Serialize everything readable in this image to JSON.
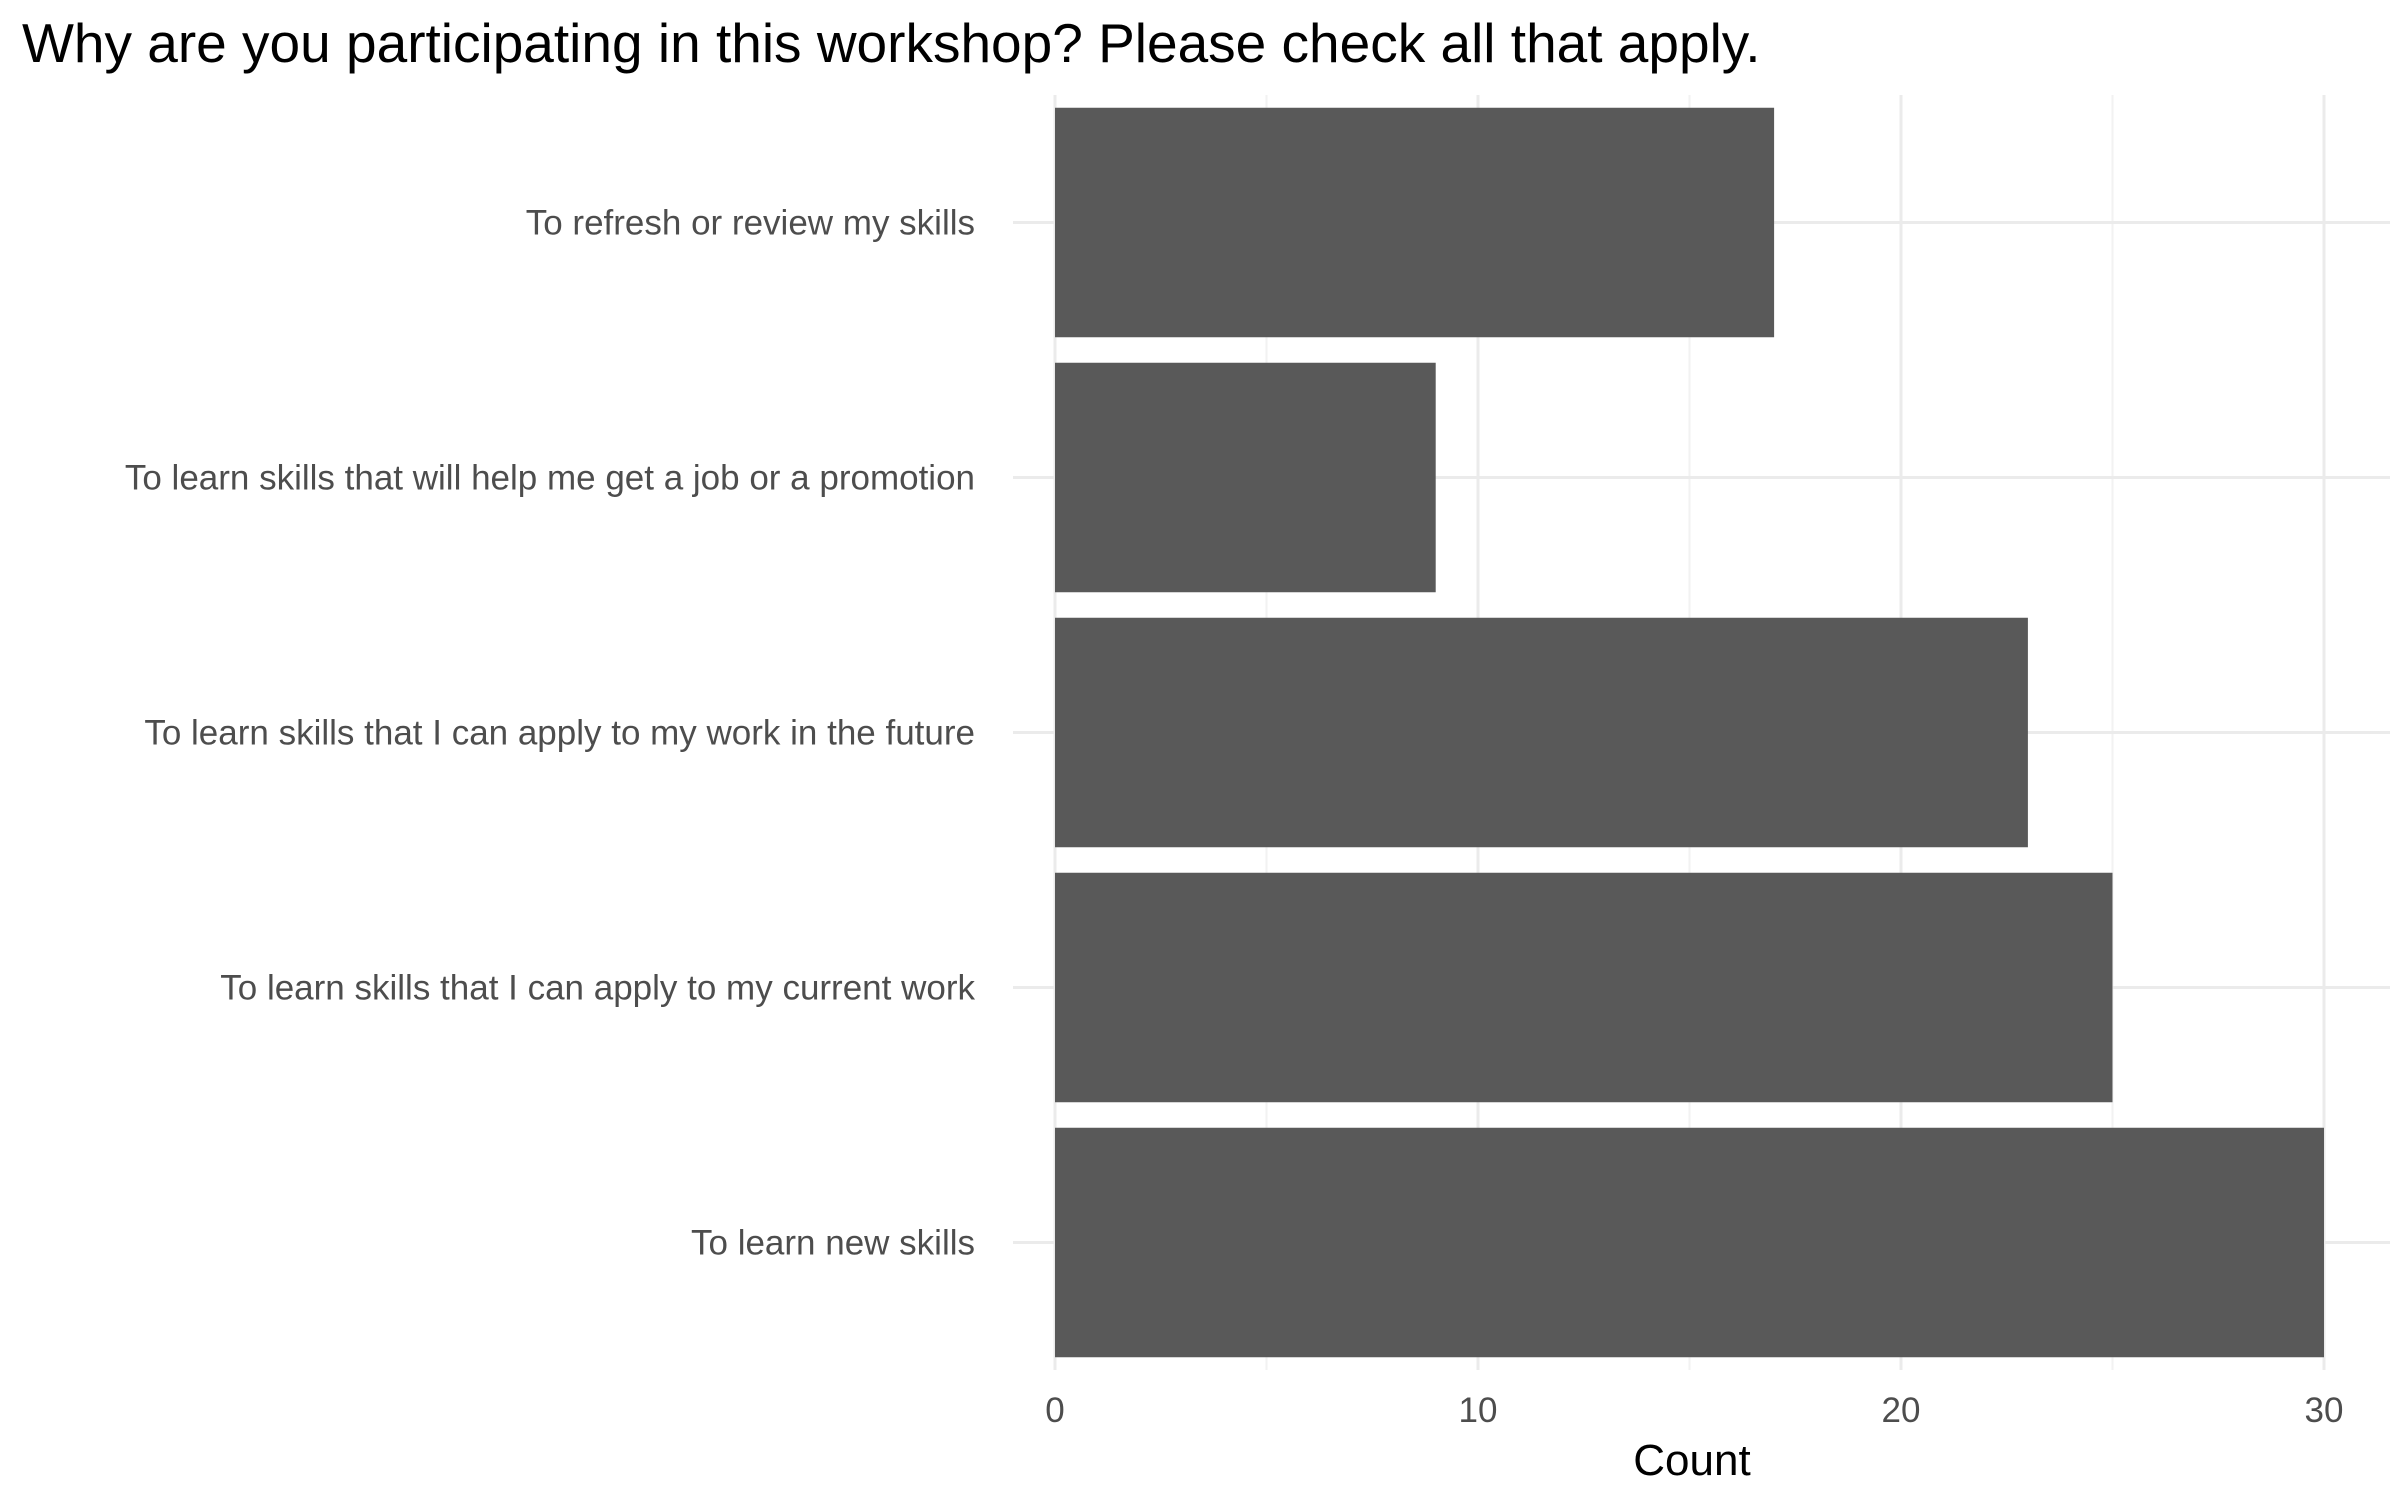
{
  "chart_data": {
    "type": "bar",
    "orientation": "horizontal",
    "title": "Why are you participating in this workshop? Please check all that apply.",
    "xlabel": "Count",
    "ylabel": "",
    "categories": [
      "To refresh or review my skills",
      "To learn skills that will help me get a job or a promotion",
      "To learn skills that I can apply to my work in the future",
      "To learn skills that I can apply to my current work",
      "To learn new skills"
    ],
    "values": [
      17,
      9,
      23,
      25,
      30
    ],
    "xlim": [
      0,
      31.5
    ],
    "x_ticks": [
      0,
      10,
      20,
      30
    ],
    "x_tick_labels": [
      "0",
      "10",
      "20",
      "30"
    ],
    "grid": true,
    "legend": "none",
    "colors": {
      "bar": "#595959",
      "grid_major": "#ebebeb",
      "grid_minor": "#f2f2f2"
    }
  }
}
